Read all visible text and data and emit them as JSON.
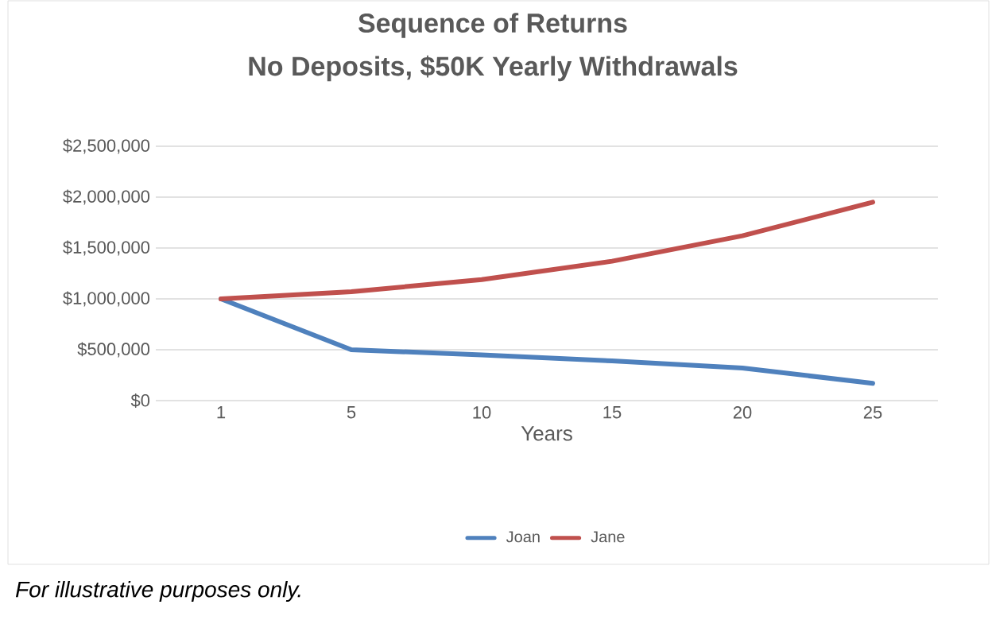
{
  "chart_data": {
    "type": "line",
    "title": "Sequence of Returns",
    "subtitle": "No Deposits, $50K Yearly Withdrawals",
    "xlabel": "Years",
    "categories": [
      "1",
      "5",
      "10",
      "15",
      "20",
      "25"
    ],
    "series": [
      {
        "name": "Joan",
        "color": "#4f81bd",
        "values": [
          1000000,
          500000,
          450000,
          390000,
          320000,
          170000
        ]
      },
      {
        "name": "Jane",
        "color": "#c0504d",
        "values": [
          1000000,
          1070000,
          1190000,
          1370000,
          1620000,
          1950000
        ]
      }
    ],
    "ylim": [
      0,
      2500000
    ],
    "yticks": [
      {
        "value": 0,
        "label": "$0"
      },
      {
        "value": 500000,
        "label": "$500,000"
      },
      {
        "value": 1000000,
        "label": "$1,000,000"
      },
      {
        "value": 1500000,
        "label": "$1,500,000"
      },
      {
        "value": 2000000,
        "label": "$2,000,000"
      },
      {
        "value": 2500000,
        "label": "$2,500,000"
      }
    ],
    "grid": "y",
    "legend": "bottom",
    "marker": "none",
    "line_style": "solid",
    "annotations": [
      "For illustrative purposes only."
    ]
  }
}
